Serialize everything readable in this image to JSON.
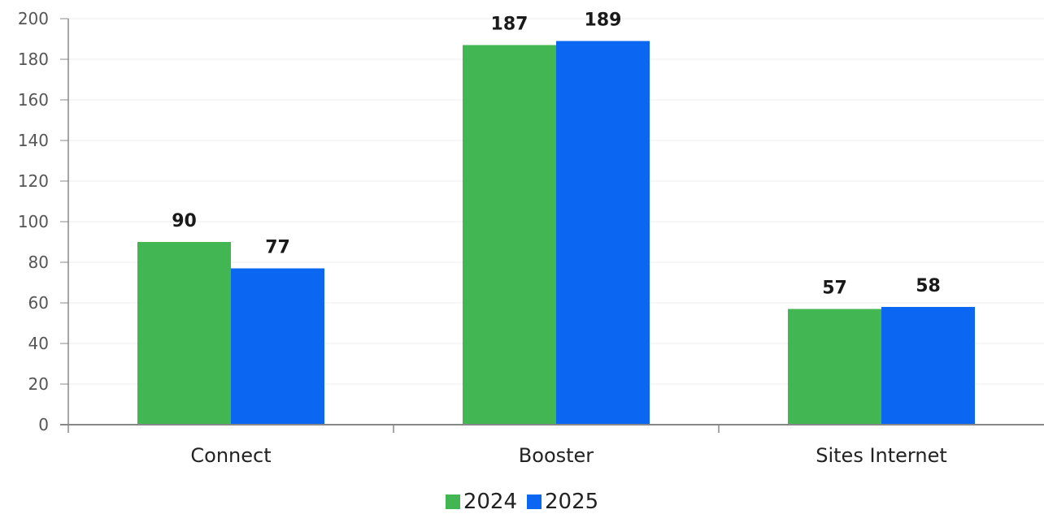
{
  "chart_data": {
    "type": "bar",
    "categories": [
      "Connect",
      "Booster",
      "Sites Internet"
    ],
    "series": [
      {
        "name": "2024",
        "values": [
          90,
          187,
          57
        ],
        "color": "#41b653"
      },
      {
        "name": "2025",
        "values": [
          77,
          189,
          58
        ],
        "color": "#0b66f2"
      }
    ],
    "ylim": [
      0,
      200
    ],
    "yticks": [
      0,
      20,
      40,
      60,
      80,
      100,
      120,
      140,
      160,
      180,
      200
    ],
    "grid": true,
    "legend_position": "bottom-center",
    "data_labels": true
  }
}
